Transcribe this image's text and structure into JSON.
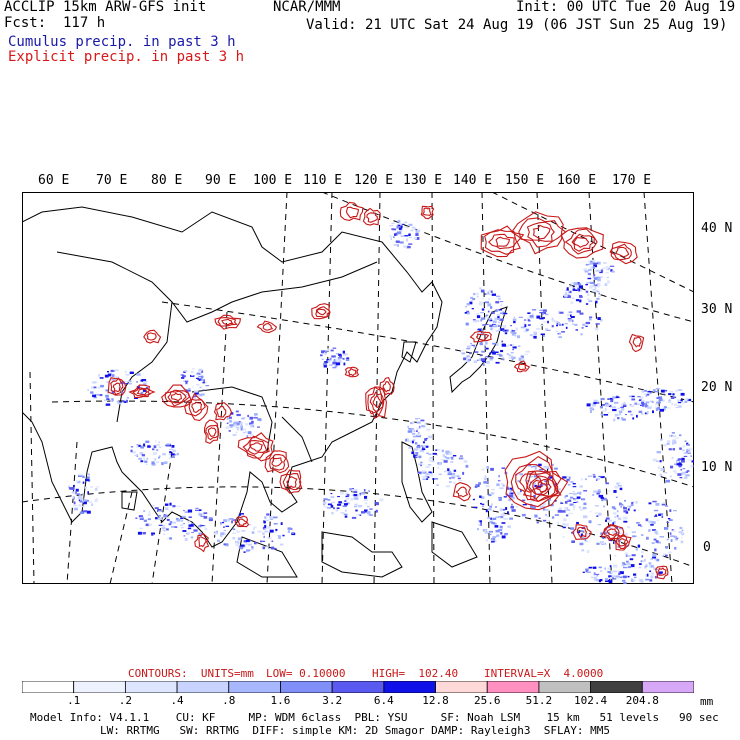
{
  "header": {
    "left1": "ACCLIP 15km ARW-GFS init",
    "left2": "Fcst:  117 h",
    "cumulus": "Cumulus precip. in past 3 h",
    "explicit": "Explicit precip. in past 3 h",
    "center": "NCAR/MMM",
    "init": "Init: 00 UTC Tue 20 Aug 19",
    "valid": "Valid: 21 UTC Sat 24 Aug 19 (06 JST Sun 25 Aug 19)",
    "colors": {
      "cumulus": "#1a1aa8",
      "explicit": "#d81818"
    }
  },
  "map": {
    "lon_labels": [
      "60 E",
      "70 E",
      "80 E",
      "90 E",
      "100 E",
      "110 E",
      "120 E",
      "130 E",
      "140 E",
      "150 E",
      "160 E",
      "170 E"
    ],
    "lat_labels": [
      "40 N",
      "30 N",
      "20 N",
      "10 N",
      "0"
    ]
  },
  "contours": {
    "units": "CONTOURS:  UNITS=mm",
    "low": "LOW= 0.10000",
    "high": "HIGH=  102.40",
    "interval": "INTERVAL=X  4.0000",
    "color": "#c81818"
  },
  "colorbar": {
    "labels": [
      ".1",
      ".2",
      ".4",
      ".8",
      "1.6",
      "3.2",
      "6.4",
      "12.8",
      "25.6",
      "51.2",
      "102.4",
      "204.8"
    ],
    "unit": "mm",
    "colors": [
      "#ffffff",
      "#eef2ff",
      "#dde5ff",
      "#c8d4ff",
      "#a8b8ff",
      "#8090f8",
      "#5a5af0",
      "#1010e8",
      "#ffd8d8",
      "#ff90c0",
      "#c0c0c0",
      "#404040",
      "#d8a8f8"
    ]
  },
  "footer": {
    "line1": "Model Info: V4.1.1    CU: KF     MP: WDM 6class  PBL: YSU     SF: Noah LSM    15 km   51 levels   90 sec",
    "line2": "LW: RRTMG   SW: RRTMG  DIFF: simple KM: 2D Smagor DAMP: Rayleigh3  SFLAY: MM5"
  }
}
